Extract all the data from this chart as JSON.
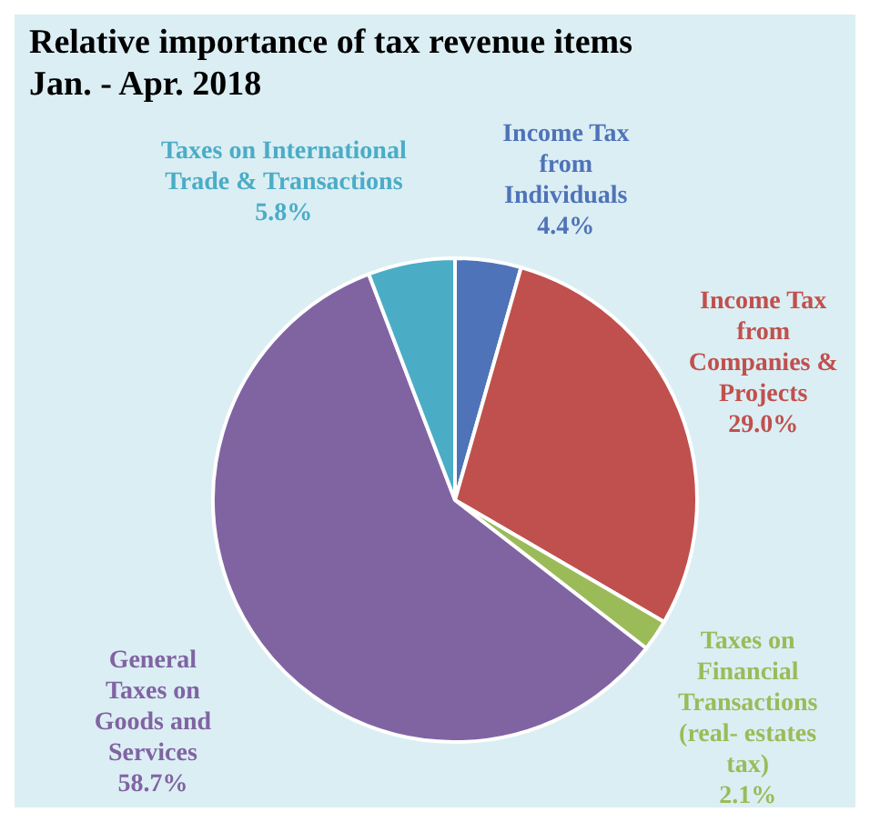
{
  "chart_data": {
    "type": "pie",
    "title": "Relative importance of tax revenue items",
    "subtitle": "Jan. - Apr. 2018",
    "categories": [
      "Income Tax from Individuals",
      "Income Tax from Companies & Projects",
      "Taxes on Financial Transactions (real- estates tax)",
      "General Taxes on Goods and Services",
      "Taxes on International Trade & Transactions"
    ],
    "values": [
      4.4,
      29.0,
      2.1,
      58.7,
      5.8
    ],
    "colors": [
      "#4f73b8",
      "#c0504d",
      "#9bbb59",
      "#8064a2",
      "#4bacc6"
    ],
    "value_labels": [
      "4.4%",
      "29.0%",
      "2.1%",
      "58.7%",
      "5.8%"
    ],
    "legend": false
  }
}
